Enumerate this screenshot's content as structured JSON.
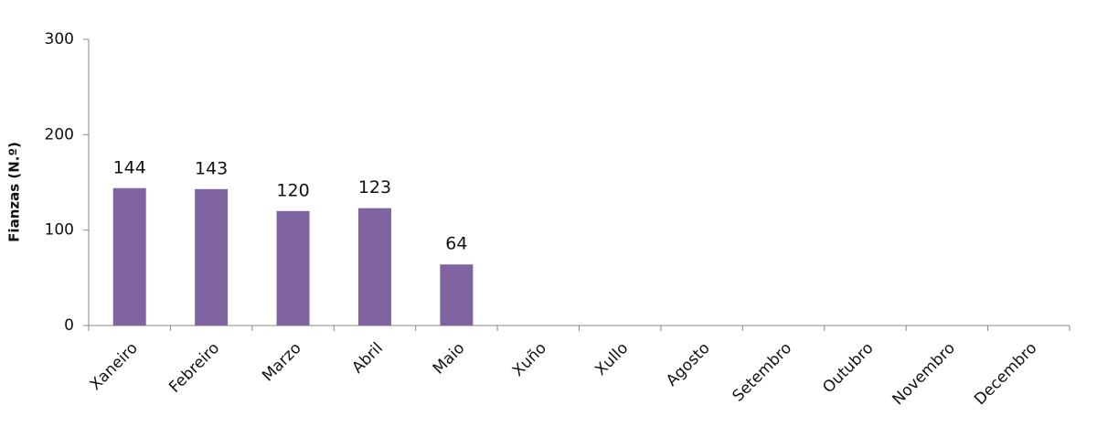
{
  "chart_data": {
    "type": "bar",
    "y_label": "Fianzas (N.º)",
    "categories": [
      "Xaneiro",
      "Febreiro",
      "Marzo",
      "Abril",
      "Maio",
      "Xuño",
      "Xullo",
      "Agosto",
      "Setembro",
      "Outubro",
      "Novembro",
      "Decembro"
    ],
    "values": [
      144,
      143,
      120,
      123,
      64,
      null,
      null,
      null,
      null,
      null,
      null,
      null
    ],
    "color": "#8064a2",
    "ylim": [
      0,
      300
    ],
    "yticks": [
      0,
      100,
      200,
      300
    ],
    "grid": false,
    "data_labels": true
  }
}
